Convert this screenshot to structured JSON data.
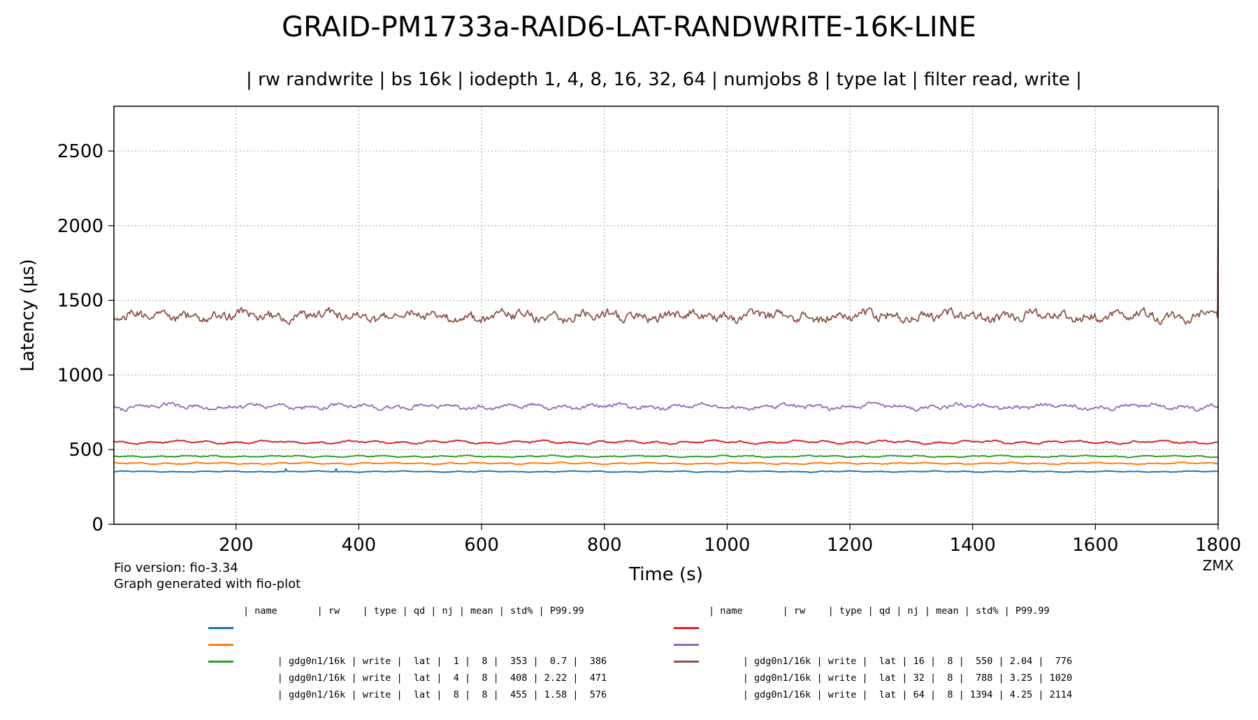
{
  "chart_data": {
    "type": "line",
    "title": "GRAID-PM1733a-RAID6-LAT-RANDWRITE-16K-LINE",
    "subtitle": "| rw randwrite | bs 16k | iodepth 1, 4, 8, 16, 32, 64 | numjobs 8 | type lat | filter read, write |",
    "xlabel": "Time (s)",
    "ylabel": "Latency (µs)",
    "xlim": [
      1,
      1800
    ],
    "ylim": [
      0,
      2800
    ],
    "x_ticks": [
      200,
      400,
      600,
      800,
      1000,
      1200,
      1400,
      1600,
      1800
    ],
    "y_ticks": [
      0,
      500,
      1000,
      1500,
      2000,
      2500
    ],
    "grid": true,
    "x_range": [
      1,
      1800
    ],
    "series": [
      {
        "name": "gdg0n1/16k write lat qd1",
        "color": "#1f77b4",
        "mean": 353,
        "amp": 4,
        "noise": 3
      },
      {
        "name": "gdg0n1/16k write lat qd4",
        "color": "#ff7f0e",
        "mean": 408,
        "amp": 6,
        "noise": 4
      },
      {
        "name": "gdg0n1/16k write lat qd8",
        "color": "#2ca02c",
        "mean": 455,
        "amp": 6,
        "noise": 4
      },
      {
        "name": "gdg0n1/16k write lat qd16",
        "color": "#d62728",
        "mean": 550,
        "amp": 12,
        "noise": 6
      },
      {
        "name": "gdg0n1/16k write lat qd32",
        "color": "#9467bd",
        "mean": 788,
        "amp": 20,
        "noise": 18
      },
      {
        "name": "gdg0n1/16k write lat qd64",
        "color": "#8c564b",
        "mean": 1394,
        "amp": 30,
        "noise": 45
      }
    ],
    "end_spike": 2240
  },
  "footer": {
    "fio_version": "Fio version: fio-3.34",
    "generated": "Graph generated with fio-plot",
    "watermark": "ZMX"
  },
  "legend": {
    "header": "| name       | rw    | type | qd | nj | mean | std% | P99.99",
    "rows_left": [
      {
        "text": "| gdg0n1/16k | write |  lat |  1 |  8 |  353 |  0.7 |  386",
        "color": "#1f77b4"
      },
      {
        "text": "| gdg0n1/16k | write |  lat |  4 |  8 |  408 | 2.22 |  471",
        "color": "#ff7f0e"
      },
      {
        "text": "| gdg0n1/16k | write |  lat |  8 |  8 |  455 | 1.58 |  576",
        "color": "#2ca02c"
      }
    ],
    "rows_right": [
      {
        "text": "| gdg0n1/16k | write |  lat | 16 |  8 |  550 | 2.04 |  776",
        "color": "#d62728"
      },
      {
        "text": "| gdg0n1/16k | write |  lat | 32 |  8 |  788 | 3.25 | 1020",
        "color": "#9467bd"
      },
      {
        "text": "| gdg0n1/16k | write |  lat | 64 |  8 | 1394 | 4.25 | 2114",
        "color": "#8c564b"
      }
    ]
  }
}
